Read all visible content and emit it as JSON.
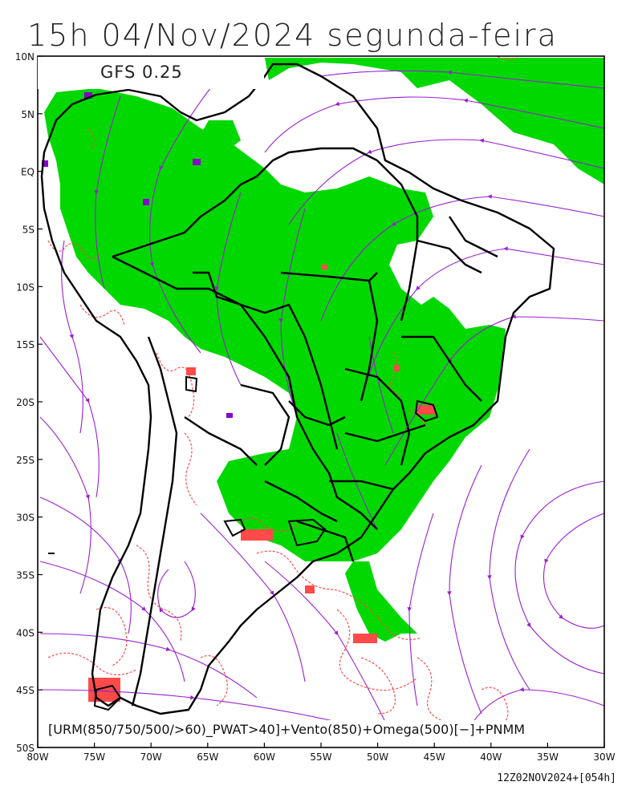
{
  "title": "15h 04/Nov/2024 segunda-feira",
  "model_label": "GFS 0.25",
  "legend_caption": "[URM(850/750/500/>60)_PWAT>40]+Vento(850)+Omega(500)[−]+PNMM",
  "run_stamp": "12Z02NOV2024+[054h]",
  "map": {
    "lat_labels": [
      "10N",
      "5N",
      "EQ",
      "5S",
      "10S",
      "15S",
      "20S",
      "25S",
      "30S",
      "35S",
      "40S",
      "45S",
      "50S"
    ],
    "lon_labels": [
      "80W",
      "75W",
      "70W",
      "65W",
      "60W",
      "55W",
      "50W",
      "45W",
      "40W",
      "35W",
      "30W"
    ],
    "lat_range": [
      -50,
      10
    ],
    "lon_range": [
      -80,
      -30
    ],
    "colors": {
      "humidity_fill": "#00d800",
      "streamlines": "#9a20d0",
      "omega_contours": "#ff4a4a",
      "borders": "#000000",
      "pwat_high": "#8800cc"
    },
    "layers": [
      "humidity",
      "streamlines",
      "omega-500",
      "borders"
    ]
  }
}
